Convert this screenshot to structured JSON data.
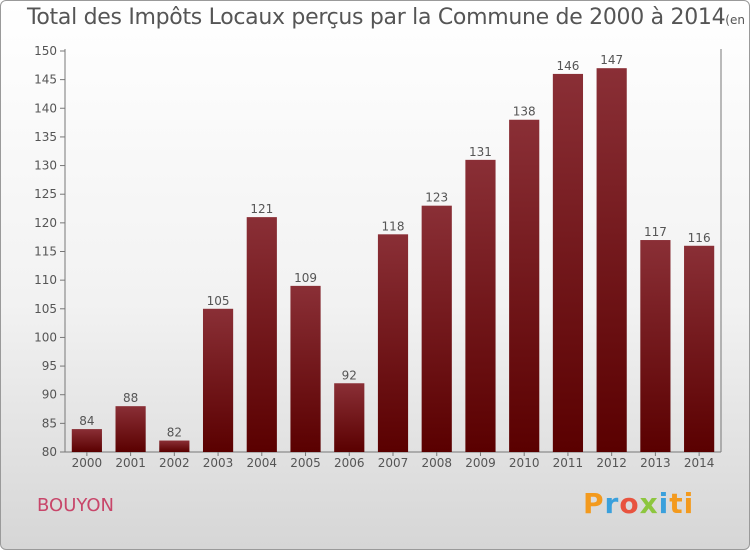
{
  "title": "Total des Impôts Locaux perçus par la Commune de 2000 à 2014",
  "subtitle": "(en milliers d'€)",
  "commune": "BOUYON",
  "logo": {
    "letters": [
      "P",
      "r",
      "o",
      "x",
      "i",
      "t",
      "i"
    ],
    "text": "Proxiti"
  },
  "colors": {
    "bar_top": "#8a2f36",
    "bar_bottom": "#5a0000",
    "axis": "#777777",
    "text": "#555555",
    "commune": "#c8466a"
  },
  "chart_data": {
    "type": "bar",
    "title": "Total des Impôts Locaux perçus par la Commune de 2000 à 2014",
    "subtitle": "(en milliers d'€)",
    "xlabel": "",
    "ylabel": "",
    "categories": [
      "2000",
      "2001",
      "2002",
      "2003",
      "2004",
      "2005",
      "2006",
      "2007",
      "2008",
      "2009",
      "2010",
      "2011",
      "2012",
      "2013",
      "2014"
    ],
    "values": [
      84,
      88,
      82,
      105,
      121,
      109,
      92,
      118,
      123,
      131,
      138,
      146,
      147,
      117,
      116
    ],
    "ylim": [
      80,
      150
    ],
    "yticks": [
      80,
      85,
      90,
      95,
      100,
      105,
      110,
      115,
      120,
      125,
      130,
      135,
      140,
      145,
      150
    ],
    "grid": false,
    "data_labels": true
  }
}
